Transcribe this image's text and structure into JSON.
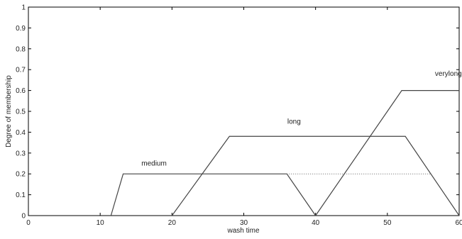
{
  "chart_data": {
    "type": "line",
    "xlabel": "wash time",
    "ylabel": "Degree of membership",
    "xlim": [
      0,
      60
    ],
    "ylim": [
      0,
      1
    ],
    "xticks": [
      "0",
      "10",
      "20",
      "30",
      "40",
      "50",
      "60"
    ],
    "yticks": [
      "0",
      "0.1",
      "0.2",
      "0.3",
      "0.4",
      "0.5",
      "0.6",
      "0.7",
      "0.8",
      "0.9",
      "1"
    ],
    "grid": false,
    "series": [
      {
        "name": "medium",
        "color": "#444444",
        "x": [
          11.5,
          13.2,
          36.0,
          40.0
        ],
        "y": [
          0,
          0.2,
          0.2,
          0
        ],
        "label_pos": [
          17.5,
          0.24
        ]
      },
      {
        "name": "long",
        "color": "#444444",
        "x": [
          20.0,
          28.0,
          52.5,
          60.0
        ],
        "y": [
          0,
          0.38,
          0.38,
          0
        ],
        "label_pos": [
          37.0,
          0.44
        ]
      },
      {
        "name": "verylong",
        "color": "#444444",
        "x": [
          40.0,
          52.0,
          60.0
        ],
        "y": [
          0,
          0.6,
          0.6
        ],
        "label_pos": [
          58.5,
          0.67
        ]
      }
    ],
    "annotations": [
      {
        "kind": "dotted-line",
        "x": [
          36.0,
          56.0
        ],
        "y": [
          0.2,
          0.2
        ],
        "color": "#666666"
      }
    ]
  }
}
